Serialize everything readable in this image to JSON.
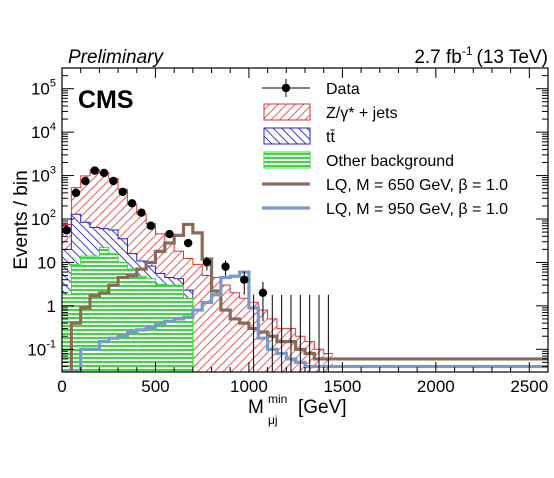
{
  "header": {
    "preliminary": "Preliminary",
    "lumi_value": "2.7 fb",
    "lumi_exp": "-1",
    "lumi_energy": "(13 TeV)",
    "experiment": "CMS"
  },
  "chart_data": {
    "type": "histogram",
    "title": "",
    "xlabel": "M",
    "xlabel_sup": "min",
    "xlabel_sub": "μj",
    "xlabel_units": "[GeV]",
    "ylabel": "Events / bin",
    "xlim": [
      0,
      2600
    ],
    "ylim": [
      0.03,
      300000
    ],
    "yscale": "log",
    "grid": false,
    "legend_position": "top-right",
    "xticks": [
      "0",
      "500",
      "1000",
      "1500",
      "2000",
      "2500"
    ],
    "yticks": [
      {
        "base": "10",
        "exp": "-1",
        "value": 0.1
      },
      {
        "base": "1",
        "exp": "",
        "value": 1
      },
      {
        "base": "10",
        "exp": "",
        "value": 10
      },
      {
        "base": "10",
        "exp": "2",
        "value": 100
      },
      {
        "base": "10",
        "exp": "3",
        "value": 1000
      },
      {
        "base": "10",
        "exp": "4",
        "value": 10000
      },
      {
        "base": "10",
        "exp": "5",
        "value": 100000
      }
    ],
    "bin_edges": [
      0,
      50,
      100,
      150,
      200,
      250,
      300,
      350,
      400,
      450,
      500,
      550,
      600,
      650,
      700,
      750,
      800,
      850,
      900,
      950,
      1000,
      1050,
      1100,
      1150,
      1200,
      1250,
      1300,
      1350,
      1400,
      1450
    ],
    "stack": [
      {
        "name": "Z/γ* + jets",
        "values": [
          55,
          400,
          900,
          1300,
          1100,
          800,
          450,
          200,
          120,
          70,
          40,
          22,
          14,
          10,
          9,
          5,
          4.5,
          3,
          2,
          1.5,
          1.2,
          0.8,
          0.5,
          0.3,
          0.3,
          0.2,
          0.15,
          0.1,
          0.08
        ]
      },
      {
        "name": "tt̄",
        "values": [
          18,
          120,
          70,
          50,
          38,
          40,
          25,
          9,
          6,
          4,
          2.5,
          1.5,
          1.2,
          0.8,
          0,
          0,
          0,
          0,
          0,
          0,
          0,
          0,
          0,
          0,
          0,
          0,
          0,
          0,
          0
        ]
      },
      {
        "name": "Other background",
        "values": [
          1.8,
          9,
          14,
          14,
          22,
          16,
          10,
          7,
          4.8,
          4.2,
          3.1,
          3.0,
          3.0,
          1.5,
          0,
          0,
          0,
          0,
          0,
          0,
          0,
          0,
          0,
          0,
          0,
          0,
          0,
          0,
          0
        ]
      }
    ],
    "data_points": {
      "name": "Data",
      "x": [
        25,
        75,
        125,
        175,
        225,
        275,
        325,
        375,
        425,
        475,
        525,
        575,
        625,
        675,
        725,
        775,
        825,
        875,
        925,
        975,
        1025,
        1075,
        1125,
        1175,
        1225,
        1275,
        1325,
        1375,
        1425
      ],
      "y": [
        55,
        400,
        750,
        1300,
        1150,
        750,
        420,
        230,
        140,
        70,
        0,
        45,
        0,
        28,
        0,
        10,
        0,
        8,
        0,
        4,
        0,
        2,
        0,
        0,
        0,
        0,
        0,
        0,
        0
      ]
    },
    "signal": [
      {
        "name": "LQ, M = 650 GeV, β = 1.0",
        "values": [
          0.03,
          0.4,
          0.9,
          1.7,
          2.0,
          3.0,
          4.5,
          5.0,
          7.0,
          10.0,
          18,
          28,
          42,
          75,
          48,
          12,
          2.2,
          0.8,
          0.5,
          0.4,
          0.3,
          0.25,
          0.2,
          0.15,
          0.15,
          0.1,
          0.08,
          0.06,
          0.06
        ]
      },
      {
        "name": "LQ, M = 950 GeV, β = 1.0",
        "values": [
          0.03,
          0.03,
          0.1,
          0.1,
          0.15,
          0.18,
          0.2,
          0.25,
          0.28,
          0.32,
          0.38,
          0.44,
          0.5,
          0.55,
          0.8,
          1.2,
          1.8,
          4.5,
          4.8,
          6.0,
          0.9,
          0.18,
          0.1,
          0.08,
          0.06,
          0.05,
          0.04,
          0.04,
          0.04
        ]
      }
    ],
    "legend": [
      {
        "label": "Data",
        "style": "marker"
      },
      {
        "label": "Z/γ* + jets",
        "style": "hatch-red"
      },
      {
        "label": "tt̄",
        "style": "hatch-blue"
      },
      {
        "label": "Other background",
        "style": "hatch-green"
      },
      {
        "label": "LQ, M = 650 GeV, β = 1.0",
        "style": "line-brown"
      },
      {
        "label": "LQ, M = 950 GeV, β = 1.0",
        "style": "line-blue"
      }
    ],
    "colors": {
      "zjets": "#dd3333",
      "ttbar": "#2222cc",
      "other": "#33dd33",
      "lq650": "#8b6a5a",
      "lq950": "#7799cc",
      "data": "#000000"
    }
  }
}
